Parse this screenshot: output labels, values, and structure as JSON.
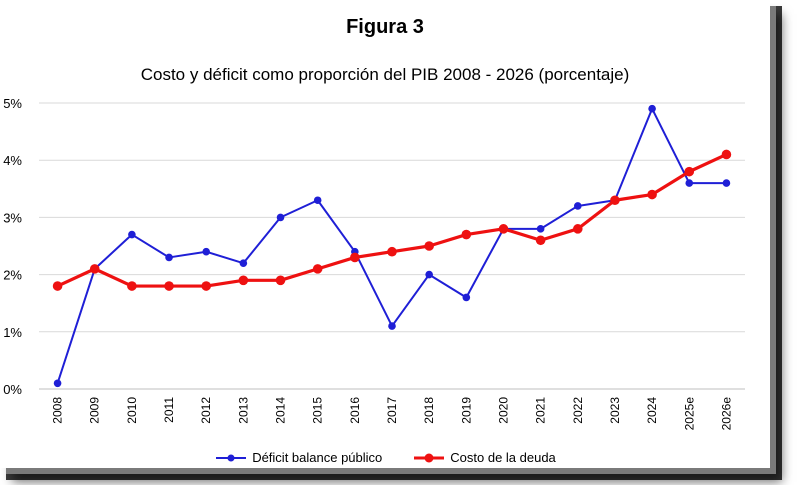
{
  "figure_title": "Figura 3",
  "chart_data": {
    "type": "line",
    "title": "Costo y déficit como proporción del PIB 2008 - 2026 (porcentaje)",
    "xlabel": "",
    "ylabel": "",
    "categories": [
      "2008",
      "2009",
      "2010",
      "2011",
      "2012",
      "2013",
      "2014",
      "2015",
      "2016",
      "2017",
      "2018",
      "2019",
      "2020",
      "2021",
      "2022",
      "2023",
      "2024",
      "2025e",
      "2026e"
    ],
    "ylim": [
      0,
      5
    ],
    "y_ticks": [
      "0%",
      "1%",
      "2%",
      "3%",
      "4%",
      "5%"
    ],
    "grid": true,
    "legend_position": "bottom",
    "series": [
      {
        "name": "Déficit balance público",
        "color": "#1f1fd6",
        "values": [
          0.1,
          2.1,
          2.7,
          2.3,
          2.4,
          2.2,
          3.0,
          3.3,
          2.4,
          1.1,
          2.0,
          1.6,
          2.8,
          2.8,
          3.2,
          3.3,
          4.9,
          3.6,
          3.6
        ]
      },
      {
        "name": "Costo de la deuda",
        "color": "#ee1111",
        "values": [
          1.8,
          2.1,
          1.8,
          1.8,
          1.8,
          1.9,
          1.9,
          2.1,
          2.3,
          2.4,
          2.5,
          2.7,
          2.8,
          2.6,
          2.8,
          3.3,
          3.4,
          3.8,
          4.1
        ]
      }
    ]
  }
}
